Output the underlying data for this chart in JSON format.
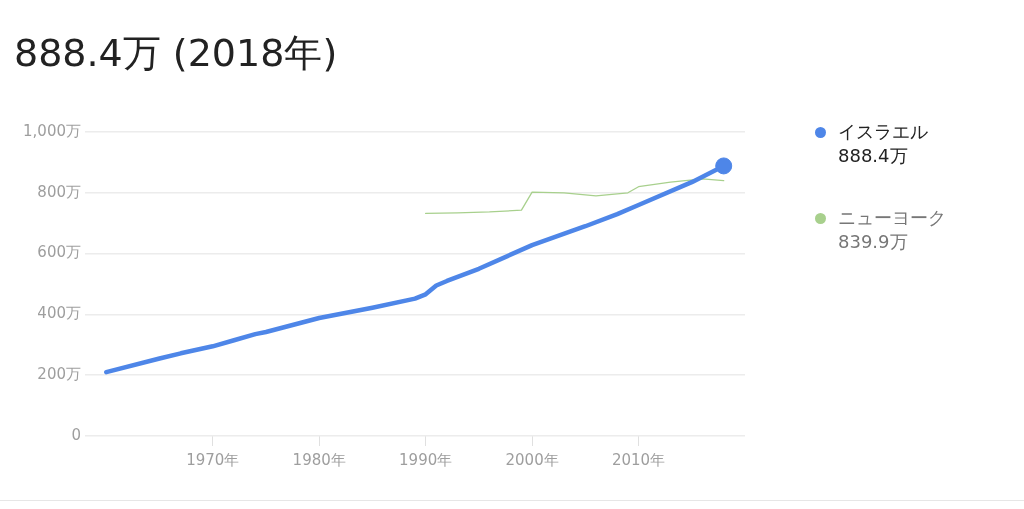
{
  "chart_data": {
    "type": "line",
    "title": "888.4万 (2018年)",
    "xlim": [
      1958,
      2020
    ],
    "xticks": [
      {
        "value": 1970,
        "label": "1970年"
      },
      {
        "value": 1980,
        "label": "1980年"
      },
      {
        "value": 1990,
        "label": "1990年"
      },
      {
        "value": 2000,
        "label": "2000年"
      },
      {
        "value": 2010,
        "label": "2010年"
      }
    ],
    "ylim": [
      0,
      1000
    ],
    "yticks": [
      {
        "value": 0,
        "label": "0"
      },
      {
        "value": 200,
        "label": "200万"
      },
      {
        "value": 400,
        "label": "400万"
      },
      {
        "value": 600,
        "label": "600万"
      },
      {
        "value": 800,
        "label": "800万"
      },
      {
        "value": 1000,
        "label": "1,000万"
      }
    ],
    "grid": "y",
    "legend": "right",
    "annotations": [
      "888.4万",
      "839.9万"
    ],
    "series": [
      {
        "name": "イスラエル",
        "color": "#4e86e8",
        "x": [
          1960,
          1965,
          1967,
          1970,
          1972,
          1974,
          1975,
          1980,
          1985,
          1989,
          1990,
          1991,
          1992,
          1995,
          2000,
          2005,
          2008,
          2010,
          2015,
          2018
        ],
        "values": [
          210,
          255,
          272,
          295,
          315,
          335,
          342,
          388,
          422,
          452,
          466,
          495,
          510,
          550,
          628,
          690,
          730,
          760,
          835,
          888.4
        ]
      },
      {
        "name": "ニューヨーク",
        "color": "#a8d08d",
        "x": [
          1990,
          1993,
          1996,
          1999,
          2000,
          2003,
          2006,
          2009,
          2010,
          2013,
          2016,
          2018
        ],
        "values": [
          732,
          734,
          737,
          743,
          802,
          800,
          790,
          800,
          820,
          835,
          846,
          839.9
        ]
      },
      {
        "type": "scatter",
        "marker": "circle",
        "color": "#4e86e8",
        "x": [
          2018
        ],
        "values": [
          888.4
        ]
      }
    ]
  }
}
